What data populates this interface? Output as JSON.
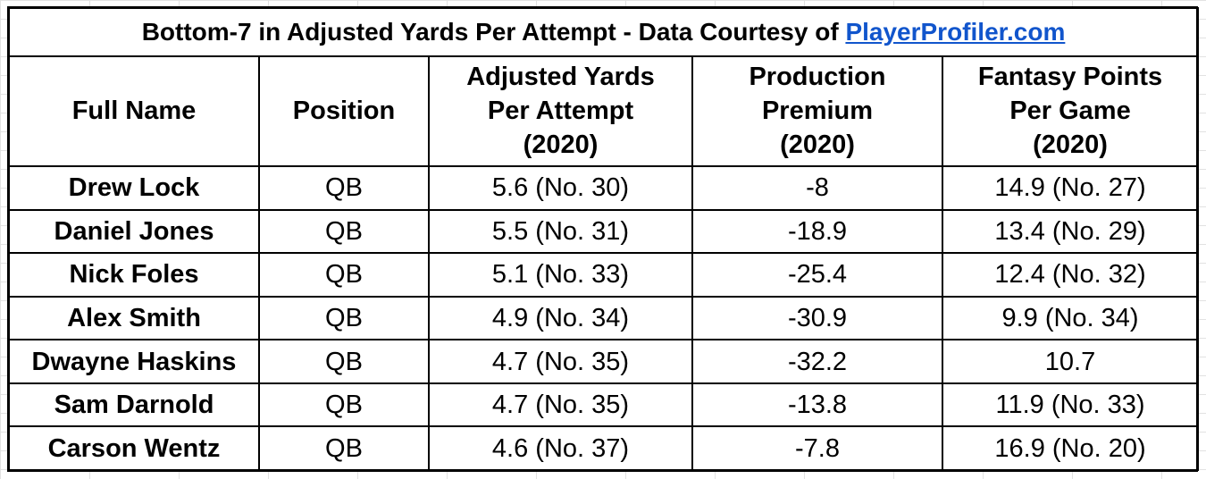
{
  "title": {
    "text": "Bottom-7 in Adjusted Yards Per Attempt - Data Courtesy of ",
    "link": "PlayerProfiler.com"
  },
  "headers": {
    "full_name": "Full Name",
    "position": "Position",
    "aypa": [
      "Adjusted Yards",
      "Per Attempt",
      "(2020)"
    ],
    "production_premium": [
      "Production",
      "Premium",
      "(2020)"
    ],
    "fantasy_points": [
      "Fantasy Points",
      "Per Game",
      "(2020)"
    ]
  },
  "rows": [
    {
      "name": "Drew Lock",
      "position": "QB",
      "aypa": "5.6 (No. 30)",
      "production_premium": "-8",
      "fantasy_points": "14.9 (No. 27)"
    },
    {
      "name": "Daniel Jones",
      "position": "QB",
      "aypa": "5.5 (No. 31)",
      "production_premium": "-18.9",
      "fantasy_points": "13.4 (No. 29)"
    },
    {
      "name": "Nick Foles",
      "position": "QB",
      "aypa": "5.1 (No. 33)",
      "production_premium": "-25.4",
      "fantasy_points": "12.4 (No. 32)"
    },
    {
      "name": "Alex Smith",
      "position": "QB",
      "aypa": "4.9 (No. 34)",
      "production_premium": "-30.9",
      "fantasy_points": "9.9 (No. 34)"
    },
    {
      "name": "Dwayne Haskins",
      "position": "QB",
      "aypa": "4.7 (No. 35)",
      "production_premium": "-32.2",
      "fantasy_points": "10.7"
    },
    {
      "name": "Sam Darnold",
      "position": "QB",
      "aypa": "4.7 (No. 35)",
      "production_premium": "-13.8",
      "fantasy_points": "11.9 (No. 33)"
    },
    {
      "name": "Carson Wentz",
      "position": "QB",
      "aypa": "4.6 (No. 37)",
      "production_premium": "-7.8",
      "fantasy_points": "16.9 (No. 20)"
    }
  ]
}
